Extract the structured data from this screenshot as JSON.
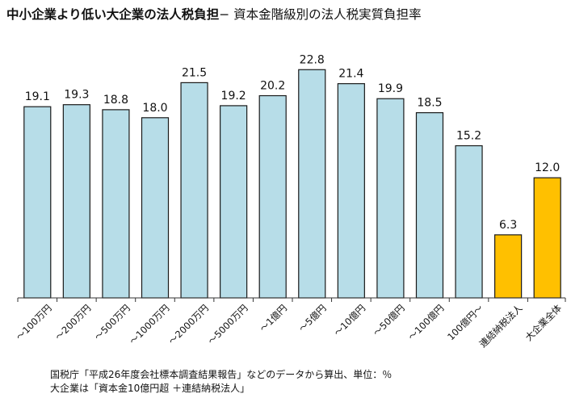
{
  "title": {
    "main": "中小企業より低い大企業の法人税負担",
    "sub": "− 資本金階級別の法人税実質負担率"
  },
  "chart_data": {
    "type": "bar",
    "title": "中小企業より低い大企業の法人税負担− 資本金階級別の法人税実質負担率",
    "categories": [
      "〜100万円",
      "〜200万円",
      "〜500万円",
      "〜1000万円",
      "〜2000万円",
      "〜5000万円",
      "〜1億円",
      "〜5億円",
      "〜10億円",
      "〜50億円",
      "〜100億円",
      "100億円〜",
      "連結納税法人",
      "大企業全体"
    ],
    "values": [
      19.1,
      19.3,
      18.8,
      18.0,
      21.5,
      19.2,
      20.2,
      22.8,
      21.4,
      19.9,
      18.5,
      15.2,
      6.3,
      12.0
    ],
    "value_labels": [
      "19.1",
      "19.3",
      "18.8",
      "18.0",
      "21.5",
      "19.2",
      "20.2",
      "22.8",
      "21.4",
      "19.9",
      "18.5",
      "15.2",
      "6.3",
      "12.0"
    ],
    "xlabel": "",
    "ylabel": "",
    "ylim": [
      0,
      25
    ],
    "grid": false,
    "legend": "none",
    "colors": {
      "normal": "#b7dde8",
      "highlight": "#ffc000",
      "edge": "#1a1a1a"
    },
    "highlighted_categories": [
      "連結納税法人",
      "大企業全体"
    ]
  },
  "footnotes": [
    "国税庁「平成26年度会社標本調査結果報告」などのデータから算出、単位：％",
    "大企業は「資本金10億円超 ＋連結納税法人」"
  ]
}
